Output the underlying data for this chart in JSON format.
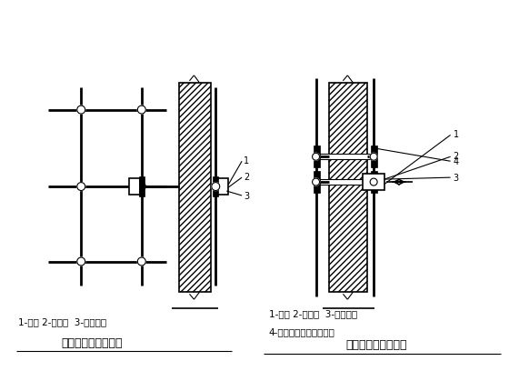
{
  "bg_color": "#ffffff",
  "line_color": "#000000",
  "figsize": [
    5.6,
    4.31
  ],
  "dpi": 100,
  "left_label_line1": "1-岗木 2-短钓管  3-直角扣件",
  "left_title": "双排脚手架（平面）",
  "right_label_line1": "1-岗木 2-短钓管  3-直角扣件",
  "right_label_line2": "4-连向立柱或横向水平杆",
  "right_title": "门窗洞口处的连墙点"
}
